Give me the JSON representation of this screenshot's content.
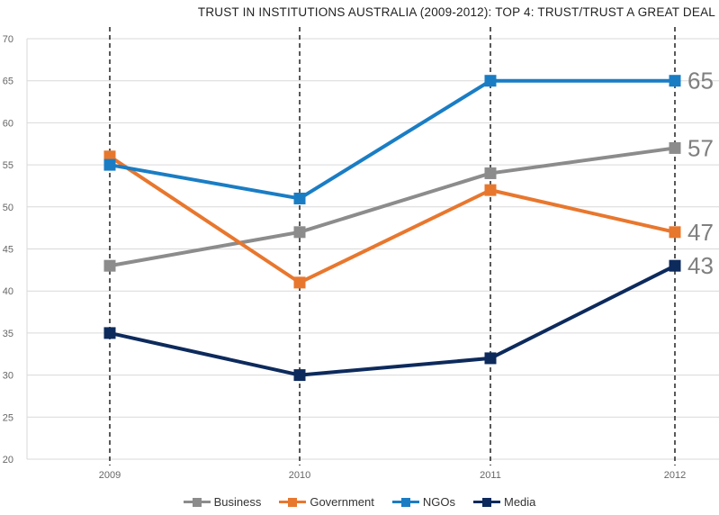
{
  "chart_data": {
    "type": "line",
    "title": "TRUST IN INSTITUTIONS  AUSTRALIA (2009-2012): TOP 4: TRUST/TRUST A GREAT DEAL",
    "categories": [
      "2009",
      "2010",
      "2011",
      "2012"
    ],
    "ylim": [
      20,
      70
    ],
    "yticks": [
      20,
      25,
      30,
      35,
      40,
      45,
      50,
      55,
      60,
      65,
      70
    ],
    "grid": true,
    "legend_position": "bottom",
    "series": [
      {
        "name": "Business",
        "color": "#8c8c8c",
        "values": [
          43,
          47,
          54,
          57
        ],
        "end_label": "57"
      },
      {
        "name": "Government",
        "color": "#e8772e",
        "values": [
          56,
          41,
          52,
          47
        ],
        "end_label": "47"
      },
      {
        "name": "NGOs",
        "color": "#1a7dc4",
        "values": [
          55,
          51,
          65,
          65
        ],
        "end_label": "65"
      },
      {
        "name": "Media",
        "color": "#0d2a5c",
        "values": [
          35,
          30,
          32,
          43
        ],
        "end_label": "43"
      }
    ]
  }
}
